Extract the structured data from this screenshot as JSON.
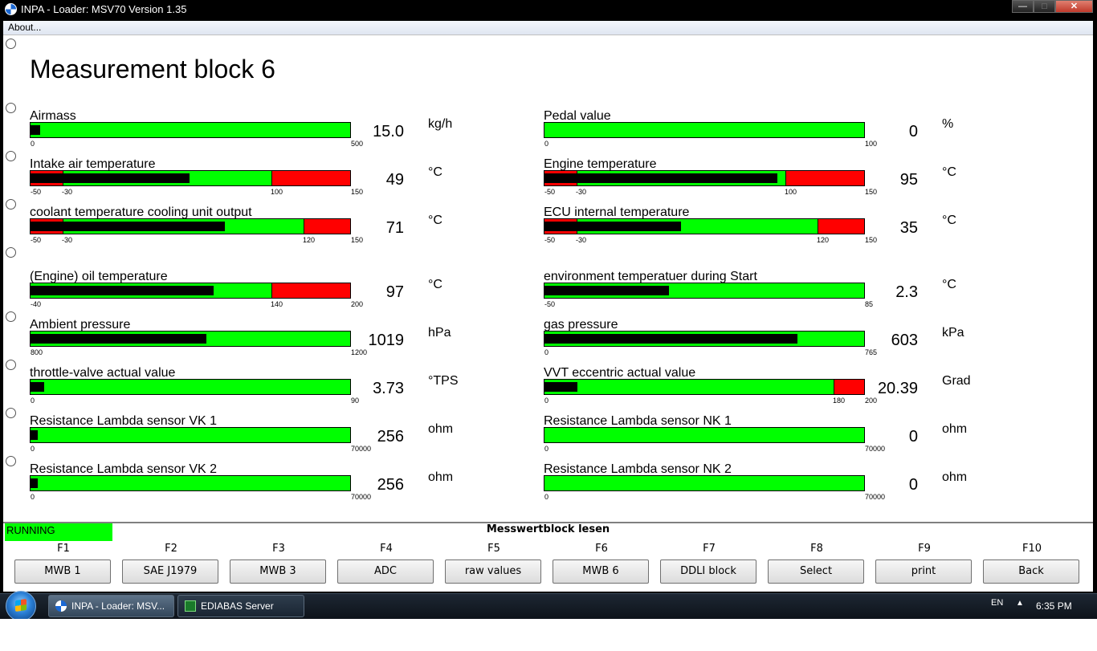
{
  "window": {
    "title": "INPA - Loader:  MSV70 Version 1.35",
    "min_glyph": "—",
    "max_glyph": "□",
    "close_glyph": "✕"
  },
  "menu": {
    "about": "About..."
  },
  "page_title": "Measurement block 6",
  "measurements": [
    {
      "label": "Airmass",
      "value": "15.0",
      "unit": "kg/h",
      "min": 0,
      "max": 500,
      "reading": 15,
      "red_low": null,
      "red_high": null,
      "ticks": [
        "0",
        "500"
      ]
    },
    {
      "label": "Pedal value",
      "value": "0",
      "unit": "%",
      "min": 0,
      "max": 100,
      "reading": 0,
      "red_low": null,
      "red_high": null,
      "ticks": [
        "0",
        "100"
      ]
    },
    {
      "label": "Intake air temperature",
      "value": "49",
      "unit": "°C",
      "min": -50,
      "max": 150,
      "reading": 49,
      "red_low": -30,
      "red_high": 100,
      "ticks": [
        "-50",
        "-30",
        "100",
        "150"
      ]
    },
    {
      "label": "Engine temperature",
      "value": "95",
      "unit": "°C",
      "min": -50,
      "max": 150,
      "reading": 95,
      "red_low": -30,
      "red_high": 100,
      "ticks": [
        "-50",
        "-30",
        "100",
        "150"
      ]
    },
    {
      "label": "coolant temperature cooling unit output",
      "value": "71",
      "unit": "°C",
      "min": -50,
      "max": 150,
      "reading": 71,
      "red_low": -30,
      "red_high": 120,
      "ticks": [
        "-50",
        "-30",
        "120",
        "150"
      ]
    },
    {
      "label": "ECU internal temperature",
      "value": "35",
      "unit": "°C",
      "min": -50,
      "max": 150,
      "reading": 35,
      "red_low": -30,
      "red_high": 120,
      "ticks": [
        "-50",
        "-30",
        "120",
        "150"
      ]
    },
    {
      "label": "(Engine) oil temperature",
      "value": "97",
      "unit": "°C",
      "min": -40,
      "max": 200,
      "reading": 97,
      "red_low": null,
      "red_high": 140,
      "ticks": [
        "-40",
        "140",
        "200"
      ]
    },
    {
      "label": "environment temperatuer during Start",
      "value": "2.3",
      "unit": "°C",
      "min": -50,
      "max": 85,
      "reading": 2.3,
      "red_low": null,
      "red_high": null,
      "ticks": [
        "-50",
        "85"
      ]
    },
    {
      "label": "Ambient pressure",
      "value": "1019",
      "unit": "hPa",
      "min": 800,
      "max": 1200,
      "reading": 1019,
      "red_low": null,
      "red_high": null,
      "ticks": [
        "800",
        "1200"
      ]
    },
    {
      "label": "gas pressure",
      "value": "603",
      "unit": "kPa",
      "min": 0,
      "max": 765,
      "reading": 603,
      "red_low": null,
      "red_high": null,
      "ticks": [
        "0",
        "765"
      ]
    },
    {
      "label": "throttle-valve actual value",
      "value": "3.73",
      "unit": "°TPS",
      "min": 0,
      "max": 90,
      "reading": 3.73,
      "red_low": null,
      "red_high": null,
      "ticks": [
        "0",
        "90"
      ]
    },
    {
      "label": "VVT eccentric actual value",
      "value": "20.39",
      "unit": "Grad",
      "min": 0,
      "max": 200,
      "reading": 20.39,
      "red_low": null,
      "red_high": 180,
      "ticks": [
        "0",
        "180",
        "200"
      ]
    },
    {
      "label": "Resistance Lambda sensor VK 1",
      "value": "256",
      "unit": "ohm",
      "min": 0,
      "max": 70000,
      "reading": 256,
      "red_low": null,
      "red_high": null,
      "ticks": [
        "0",
        "70000"
      ]
    },
    {
      "label": "Resistance Lambda sensor NK 1",
      "value": "0",
      "unit": "ohm",
      "min": 0,
      "max": 70000,
      "reading": 0,
      "red_low": null,
      "red_high": null,
      "ticks": [
        "0",
        "70000"
      ]
    },
    {
      "label": "Resistance Lambda sensor VK 2",
      "value": "256",
      "unit": "ohm",
      "min": 0,
      "max": 70000,
      "reading": 256,
      "red_low": null,
      "red_high": null,
      "ticks": [
        "0",
        "70000"
      ]
    },
    {
      "label": "Resistance Lambda sensor NK 2",
      "value": "0",
      "unit": "ohm",
      "min": 0,
      "max": 70000,
      "reading": 0,
      "red_low": null,
      "red_high": null,
      "ticks": [
        "0",
        "70000"
      ]
    }
  ],
  "status": {
    "state": "RUNNING",
    "title": "Messwertblock lesen"
  },
  "function_keys": [
    {
      "key": "F1",
      "label": "MWB 1"
    },
    {
      "key": "F2",
      "label": "SAE J1979"
    },
    {
      "key": "F3",
      "label": "MWB 3"
    },
    {
      "key": "F4",
      "label": "ADC"
    },
    {
      "key": "F5",
      "label": "raw values"
    },
    {
      "key": "F6",
      "label": "MWB 6"
    },
    {
      "key": "F7",
      "label": "DDLI block"
    },
    {
      "key": "F8",
      "label": "Select"
    },
    {
      "key": "F9",
      "label": "print"
    },
    {
      "key": "F10",
      "label": "Back"
    }
  ],
  "taskbar": {
    "items": [
      "INPA - Loader:  MSV...",
      "EDIABAS Server"
    ],
    "language": "EN",
    "tray_arrow": "▲",
    "clock": "6:35 PM"
  },
  "colors": {
    "bar_ok": "#00ff00",
    "bar_alarm": "#ff0000",
    "bar_fill": "#000000",
    "running": "#00ff00"
  }
}
